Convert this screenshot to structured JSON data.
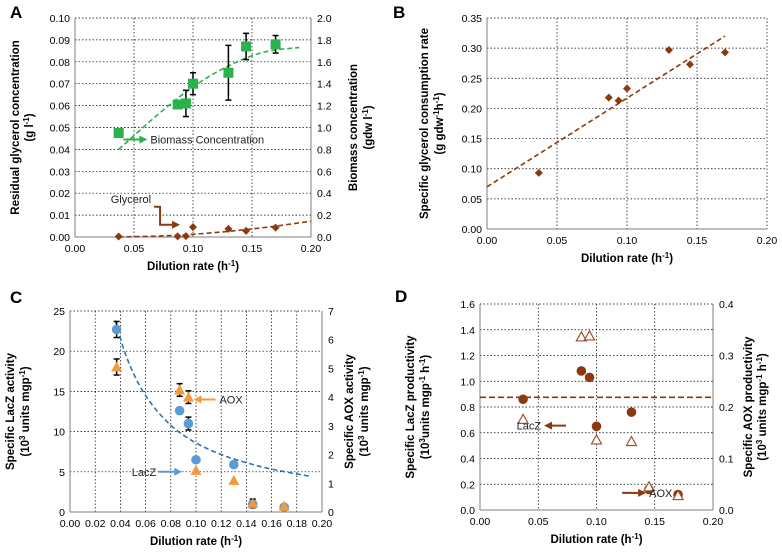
{
  "chart_data": [
    {
      "panel_label": "A",
      "type": "scatter",
      "xlabel": "Dilution rate (h",
      "xlabel_sup": "-1",
      "xlabel_end": ")",
      "ylabel": "Residual glycerol concentration",
      "ylabel2": "(g l",
      "ylabel2_sup": "-1",
      "ylabel2_end": ")",
      "y2label": "Biomass concentration",
      "y2label2": "(gdw l",
      "y2label2_sup": "-1",
      "y2label2_end": ")",
      "xlim": [
        0,
        0.2
      ],
      "ylim": [
        0,
        0.1
      ],
      "y2lim": [
        0,
        2.0
      ],
      "xticks": [
        "0.00",
        "0.05",
        "0.10",
        "0.15",
        "0.20"
      ],
      "yticks": [
        "0.00",
        "0.01",
        "0.02",
        "0.03",
        "0.04",
        "0.05",
        "0.06",
        "0.07",
        "0.08",
        "0.09",
        "0.10"
      ],
      "y2ticks": [
        "0.0",
        "0.2",
        "0.4",
        "0.6",
        "0.8",
        "1.0",
        "1.2",
        "1.4",
        "1.6",
        "1.8",
        "2.0"
      ],
      "series": [
        {
          "name": "Biomass Concentration",
          "axis": "right",
          "marker": "square",
          "color": "#2ab24d",
          "x": [
            0.037,
            0.087,
            0.094,
            0.1,
            0.13,
            0.145,
            0.17
          ],
          "y": [
            0.95,
            1.21,
            1.22,
            1.4,
            1.5,
            1.74,
            1.76
          ],
          "err": [
            0,
            0.02,
            0.12,
            0.1,
            0.25,
            0.12,
            0.08
          ]
        },
        {
          "name": "Glycerol",
          "axis": "left",
          "marker": "diamond",
          "color": "#8b3a0f",
          "x": [
            0.037,
            0.087,
            0.094,
            0.1,
            0.13,
            0.145,
            0.17
          ],
          "y": [
            0.0002,
            0.0003,
            0.0004,
            0.0045,
            0.0037,
            0.0028,
            0.0043
          ],
          "err": [
            0,
            0,
            0,
            0,
            0,
            0,
            0
          ]
        }
      ],
      "trendlines": [
        {
          "axis": "right",
          "color": "#2ab24d",
          "x": [
            0.037,
            0.07,
            0.1,
            0.13,
            0.16,
            0.19
          ],
          "y": [
            0.8,
            1.12,
            1.38,
            1.57,
            1.7,
            1.73
          ]
        },
        {
          "axis": "left",
          "color": "#8b3a0f",
          "x": [
            0.037,
            0.08,
            0.12,
            0.16,
            0.2
          ],
          "y": [
            0.0,
            0.0005,
            0.002,
            0.0042,
            0.0072
          ]
        }
      ],
      "annotations": [
        {
          "text": "Biomass Concentration",
          "color": "#2ab24d",
          "arrow": "right",
          "x": 0.041,
          "y": 0.0445
        },
        {
          "text": "Glycerol",
          "color": "#8b3a0f",
          "arrow": "elbow-down",
          "x": 0.067,
          "y": 0.0138
        }
      ]
    },
    {
      "panel_label": "B",
      "type": "scatter",
      "xlabel": "Dilution rate (h",
      "xlabel_sup": "-1",
      "xlabel_end": ")",
      "ylabel": "Specific glycerol consumption rate",
      "ylabel2": "(g gdw",
      "ylabel2_sup": "-1",
      "ylabel2_mid": "h",
      "ylabel2_sup2": "-1",
      "ylabel2_end": ")",
      "xlim": [
        0,
        0.2
      ],
      "ylim": [
        0,
        0.35
      ],
      "xticks": [
        "0.00",
        "0.05",
        "0.10",
        "0.15",
        "0.20"
      ],
      "yticks": [
        "0.00",
        "0.05",
        "0.10",
        "0.15",
        "0.20",
        "0.25",
        "0.30",
        "0.35"
      ],
      "series": [
        {
          "name": "Glycerol consumption",
          "marker": "diamond",
          "color": "#8b3a0f",
          "x": [
            0.037,
            0.087,
            0.094,
            0.1,
            0.13,
            0.145,
            0.17
          ],
          "y": [
            0.093,
            0.218,
            0.213,
            0.233,
            0.297,
            0.273,
            0.293
          ]
        }
      ],
      "trendlines": [
        {
          "color": "#8b3a0f",
          "x": [
            0.0,
            0.17
          ],
          "y": [
            0.07,
            0.32
          ]
        }
      ]
    },
    {
      "panel_label": "C",
      "type": "scatter",
      "xlabel": "Dilution rate (h",
      "xlabel_sup": "-1",
      "xlabel_end": ")",
      "ylabel": "Specific LacZ activity",
      "ylabel2": "(10",
      "ylabel2_sup": "3",
      "ylabel2_mid": " units mgp",
      "ylabel2_sup2": "-1",
      "ylabel2_end": ")",
      "y2label": "Specific AOX activity",
      "y2label2": "(10",
      "y2label2_sup": "3",
      "y2label2_mid": " units mgp",
      "y2label2_sup2": "-1",
      "y2label2_end": ")",
      "xlim": [
        0,
        0.2
      ],
      "ylim": [
        0,
        25
      ],
      "y2lim": [
        0,
        7
      ],
      "xticks": [
        "0.00",
        "0.02",
        "0.04",
        "0.06",
        "0.08",
        "0.10",
        "0.12",
        "0.14",
        "0.16",
        "0.18",
        "0.20"
      ],
      "yticks": [
        "0",
        "5",
        "10",
        "15",
        "20",
        "25"
      ],
      "y2ticks": [
        "0",
        "1",
        "2",
        "3",
        "4",
        "5",
        "6",
        "7"
      ],
      "series": [
        {
          "name": "LacZ",
          "axis": "left",
          "marker": "circle",
          "color": "#5b9bd5",
          "x": [
            0.037,
            0.087,
            0.094,
            0.1,
            0.13,
            0.145,
            0.17
          ],
          "y": [
            22.7,
            12.6,
            11.0,
            6.5,
            5.9,
            1.0,
            0.6
          ],
          "err": [
            1.0,
            0,
            0.8,
            0,
            0,
            0,
            0
          ]
        },
        {
          "name": "AOX",
          "axis": "right",
          "marker": "triangle",
          "color": "#f39a3c",
          "x": [
            0.037,
            0.087,
            0.094,
            0.1,
            0.13,
            0.145,
            0.17
          ],
          "y": [
            5.05,
            4.25,
            4.0,
            1.45,
            1.1,
            0.3,
            0.2
          ],
          "err": [
            0.28,
            0.22,
            0.22,
            0,
            0,
            0.15,
            0
          ]
        }
      ],
      "trendlines": [
        {
          "axis": "left",
          "color": "#2e75b6",
          "x": [
            0.036,
            0.045,
            0.06,
            0.08,
            0.1,
            0.12,
            0.14,
            0.16,
            0.19
          ],
          "y": [
            23.8,
            18.9,
            14.2,
            10.6,
            8.5,
            7.1,
            6.1,
            5.3,
            4.45
          ]
        }
      ],
      "annotations": [
        {
          "text": "AOX",
          "color": "#f39a3c",
          "arrow": "left",
          "x": 0.098,
          "y": 14.0
        },
        {
          "text": "LacZ",
          "color": "#5b9bd5",
          "arrow": "right",
          "x": 0.07,
          "y": 5.0
        }
      ]
    },
    {
      "panel_label": "D",
      "type": "scatter",
      "xlabel": "Dilution rate (h",
      "xlabel_sup": "-1",
      "xlabel_end": ")",
      "ylabel": "Specific LacZ productivity",
      "ylabel2": "(10",
      "ylabel2_sup": "3",
      "ylabel2_mid": "units mgp",
      "ylabel2_sup2": "-1",
      "ylabel2_mid2": " h",
      "ylabel2_sup3": "-1",
      "ylabel2_end": ")",
      "y2label": "Specific AOX productivity",
      "y2label2": "(10",
      "y2label2_sup": "3",
      "y2label2_mid": " units mgp",
      "y2label2_sup2": "-1",
      "y2label2_mid2": " h",
      "y2label2_sup3": "-1",
      "y2label2_end": ")",
      "xlim": [
        0,
        0.2
      ],
      "ylim": [
        0,
        1.6
      ],
      "y2lim": [
        0,
        0.4
      ],
      "xticks": [
        "0.00",
        "0.05",
        "0.10",
        "0.15",
        "0.20"
      ],
      "yticks": [
        "0.0",
        "0.2",
        "0.4",
        "0.6",
        "0.8",
        "1.0",
        "1.2",
        "1.4",
        "1.6"
      ],
      "y2ticks": [
        "0.0",
        "0.1",
        "0.2",
        "0.3",
        "0.4"
      ],
      "series": [
        {
          "name": "LacZ",
          "axis": "left",
          "marker": "circle",
          "color": "#8b3a0f",
          "x": [
            0.037,
            0.087,
            0.094,
            0.1,
            0.13,
            0.145,
            0.17
          ],
          "y": [
            0.86,
            1.08,
            1.03,
            0.65,
            0.76,
            0.16,
            0.12
          ]
        },
        {
          "name": "AOX",
          "axis": "right",
          "marker": "triangle-open",
          "color": "#a0522d",
          "x": [
            0.037,
            0.087,
            0.094,
            0.1,
            0.13,
            0.145,
            0.17
          ],
          "y": [
            0.176,
            0.336,
            0.338,
            0.136,
            0.133,
            0.045,
            0.028
          ]
        }
      ],
      "reference_line": {
        "axis": "left",
        "color": "#8b3a0f",
        "y": 0.875
      },
      "annotations": [
        {
          "text": "LacZ",
          "color": "#8b3a0f",
          "arrow": "left",
          "x": 0.055,
          "y": 0.655
        },
        {
          "text": "AOX",
          "color": "#8b3a0f",
          "arrow": "right",
          "x": 0.122,
          "y": 0.133
        }
      ]
    }
  ]
}
